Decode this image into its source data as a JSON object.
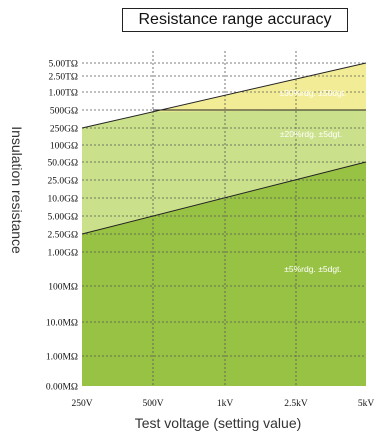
{
  "chart_data": {
    "type": "area",
    "title": "Resistance range accuracy",
    "xlabel": "Test voltage (setting value)",
    "ylabel": "Insulation resistance",
    "x_ticks": [
      "250V",
      "500V",
      "1kV",
      "2.5kV",
      "5kV"
    ],
    "y_ticks": [
      "5.00TΩ",
      "2.50TΩ",
      "1.00TΩ",
      "500GΩ",
      "250GΩ",
      "100GΩ",
      "50.0GΩ",
      "25.0GΩ",
      "10.0GΩ",
      "5.00GΩ",
      "2.50GΩ",
      "1.00GΩ",
      "100MΩ",
      "10.0MΩ",
      "1.00MΩ",
      "0.00MΩ"
    ],
    "grid": true,
    "zones": [
      {
        "label": "±30%rdg. ±50dgt.",
        "color": "#f3ec96"
      },
      {
        "label": "±20%rdg. ±5dgt.",
        "color": "#cbe08a"
      },
      {
        "label": "±5%rdg. ±5dgt.",
        "color": "#98c244"
      }
    ],
    "boundaries": [
      {
        "x": [
          "250V",
          "5kV"
        ],
        "y": [
          "250GΩ",
          "5.00TΩ"
        ]
      },
      {
        "x": [
          "500V",
          "5kV"
        ],
        "y": [
          "500GΩ",
          "500GΩ"
        ]
      },
      {
        "x": [
          "250V",
          "5kV"
        ],
        "y": [
          "2.50GΩ",
          "50.0GΩ"
        ]
      }
    ]
  }
}
